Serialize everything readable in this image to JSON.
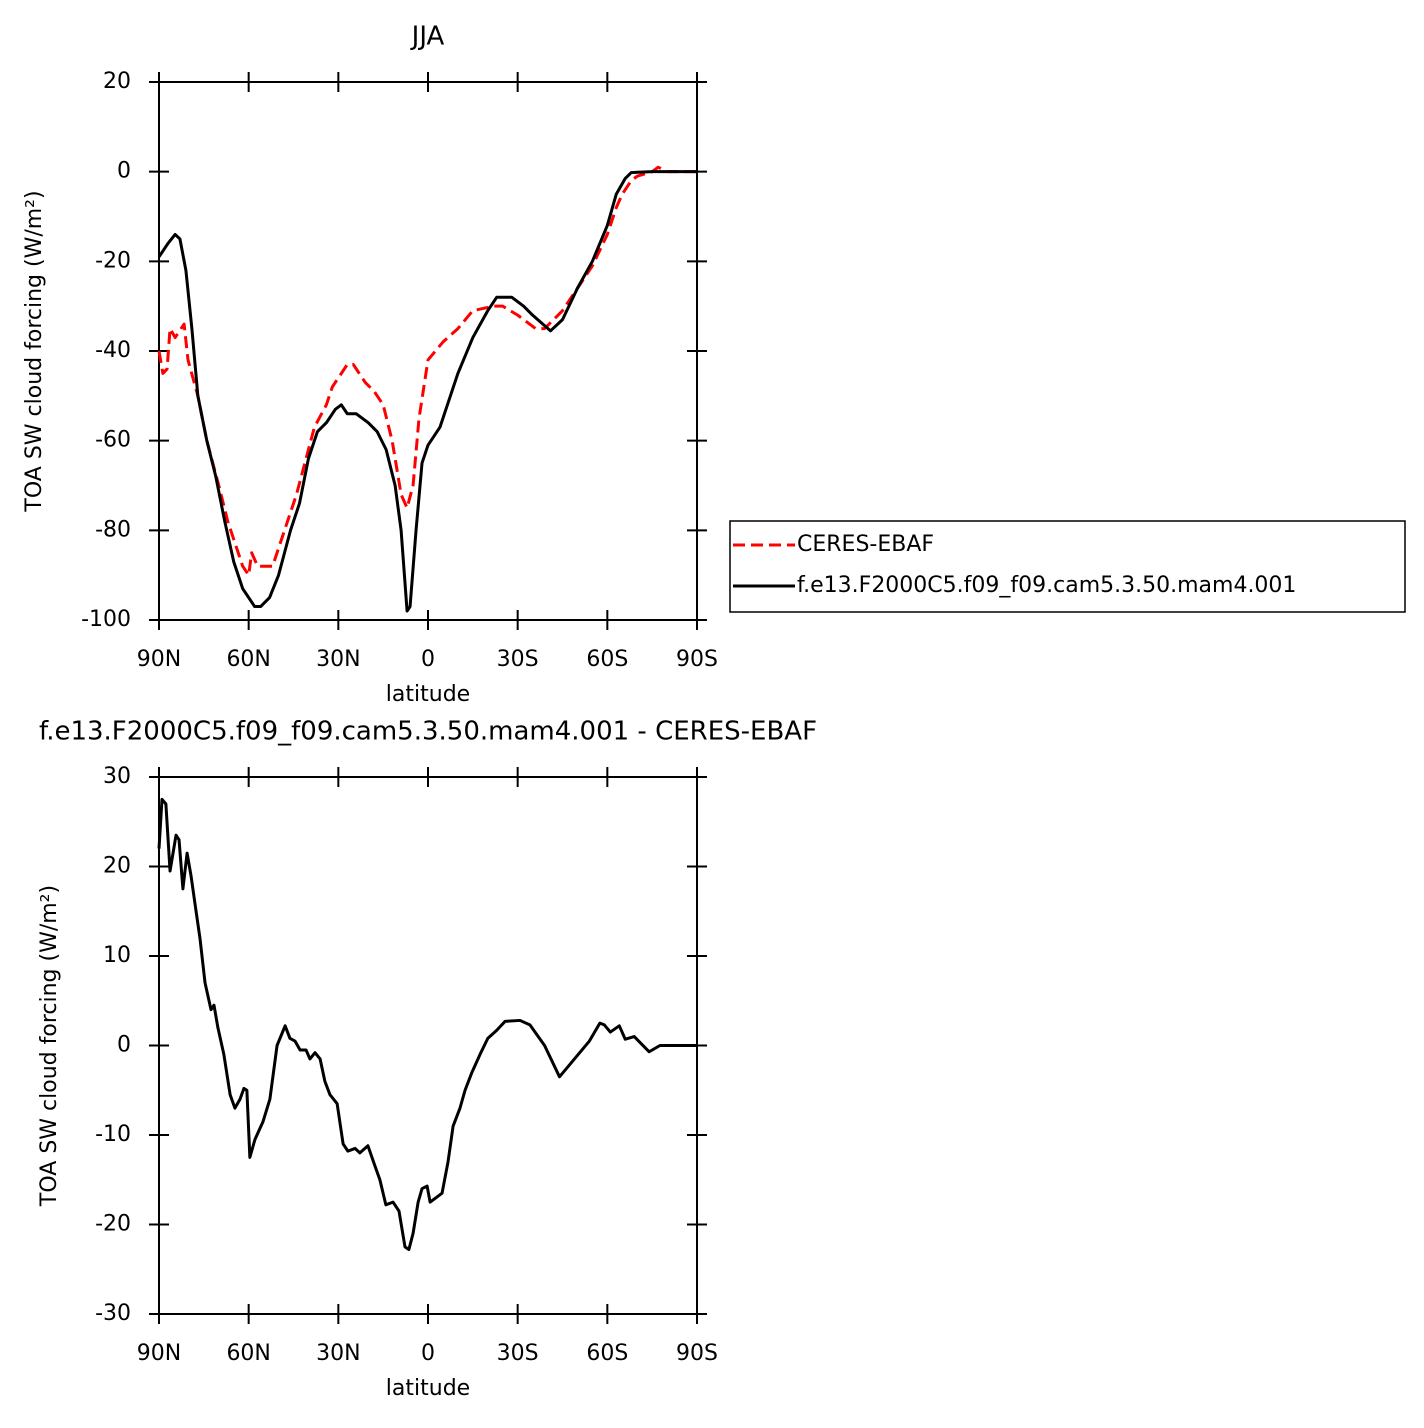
{
  "chart_data": [
    {
      "type": "line",
      "title": "JJA",
      "x_label": "latitude",
      "y_label": "TOA SW cloud forcing (W/m²)",
      "xlim": [
        90,
        -90
      ],
      "xticks": [
        {
          "value": 90,
          "label": "90N"
        },
        {
          "value": 60,
          "label": "60N"
        },
        {
          "value": 30,
          "label": "30N"
        },
        0,
        {
          "value": -30,
          "label": "30S"
        },
        {
          "value": -60,
          "label": "60S"
        },
        {
          "value": -90,
          "label": "90S"
        }
      ],
      "ylim": [
        -100,
        20
      ],
      "yticks": [
        -100,
        -80,
        -60,
        -40,
        -20,
        0,
        20
      ],
      "legend": "right",
      "series": [
        {
          "name": "CERES-EBAF",
          "color": "#ff0000",
          "dashed": true,
          "x": [
            90,
            88.7,
            87.3,
            86.3,
            84.6,
            81.6,
            80.3,
            77,
            74,
            70,
            67,
            64,
            62,
            60,
            59,
            57,
            52,
            48,
            44,
            40,
            38,
            34,
            32,
            30,
            27,
            25,
            21,
            18,
            15,
            12,
            9,
            7,
            5,
            3,
            0,
            -5,
            -10,
            -15,
            -22,
            -25,
            -30,
            -36,
            -39,
            -45,
            -50,
            -55,
            -60,
            -63,
            -65,
            -68,
            -70,
            -75,
            -77,
            -80,
            -90
          ],
          "values": [
            -40,
            -45,
            -44,
            -35,
            -37,
            -34,
            -42,
            -50,
            -60,
            -70,
            -78,
            -84,
            -88,
            -90,
            -85,
            -88,
            -88,
            -80,
            -72,
            -62,
            -57,
            -52,
            -48,
            -46,
            -43,
            -43,
            -47,
            -49,
            -52,
            -60,
            -72,
            -75,
            -70,
            -55,
            -42,
            -38,
            -35,
            -31,
            -30,
            -30,
            -32,
            -35,
            -35,
            -31,
            -26,
            -21,
            -14,
            -8,
            -5,
            -2,
            -1,
            0,
            1,
            0,
            0
          ]
        },
        {
          "name": "f.e13.F2000C5.f09_f09.cam5.3.50.mam4.001",
          "color": "#000000",
          "dashed": false,
          "x": [
            90,
            87,
            84.6,
            83,
            81,
            79,
            77,
            74,
            71,
            68,
            65,
            62,
            60,
            58,
            56,
            53,
            50,
            46,
            43,
            40,
            37,
            34,
            31,
            29,
            27,
            24,
            20,
            17,
            14,
            11,
            9,
            7,
            6,
            4,
            2,
            0,
            -4,
            -7,
            -10,
            -15,
            -20,
            -23,
            -28,
            -32,
            -35,
            -41,
            -45,
            -50,
            -55,
            -60,
            -63,
            -66,
            -68,
            -75,
            -90
          ],
          "values": [
            -19,
            -16,
            -14,
            -15,
            -22,
            -35,
            -50,
            -60,
            -68,
            -78,
            -87,
            -93,
            -95,
            -97,
            -97,
            -95,
            -90,
            -80,
            -74,
            -64,
            -58,
            -56,
            -53,
            -52,
            -54,
            -54,
            -56,
            -58,
            -62,
            -70,
            -80,
            -98,
            -97,
            -80,
            -65,
            -61,
            -57,
            -51,
            -45,
            -37,
            -31,
            -28,
            -28,
            -30,
            -32,
            -35.5,
            -33,
            -26,
            -20,
            -12,
            -5,
            -1.5,
            -0.2,
            0,
            0
          ]
        }
      ]
    },
    {
      "type": "line",
      "title": "f.e13.F2000C5.f09_f09.cam5.3.50.mam4.001 - CERES-EBAF",
      "x_label": "latitude",
      "y_label": "TOA SW cloud forcing (W/m²)",
      "xlim": [
        90,
        -90
      ],
      "xticks": [
        {
          "value": 90,
          "label": "90N"
        },
        {
          "value": 60,
          "label": "60N"
        },
        {
          "value": 30,
          "label": "30N"
        },
        0,
        {
          "value": -30,
          "label": "30S"
        },
        {
          "value": -60,
          "label": "60S"
        },
        {
          "value": -90,
          "label": "90S"
        }
      ],
      "ylim": [
        -30,
        30
      ],
      "yticks": [
        -30,
        -20,
        -10,
        0,
        10,
        20,
        30
      ],
      "series": [
        {
          "color": "#000000",
          "dashed": false,
          "x": [
            90,
            89,
            87.7,
            86.3,
            84.3,
            83.3,
            82,
            80.6,
            79.3,
            77.6,
            76.3,
            74.6,
            72.6,
            71.6,
            70.3,
            68.3,
            66.2,
            64.6,
            62.9,
            61.6,
            60.6,
            59.6,
            57.9,
            55.2,
            52.9,
            50.5,
            47.8,
            46.2,
            44.5,
            42.8,
            40.8,
            39.5,
            37.8,
            36.1,
            34.5,
            32.8,
            30.4,
            28.4,
            26.8,
            24.4,
            22.8,
            20.1,
            17.7,
            16.1,
            14.1,
            11.7,
            9.7,
            7.7,
            6.4,
            5,
            3.3,
            2,
            0.3,
            -0.7,
            -2.7,
            -4.7,
            -6.7,
            -8.4,
            -10.7,
            -12.4,
            -14.7,
            -17.4,
            -20,
            -23,
            -25.8,
            -30.8,
            -34.1,
            -39,
            -44,
            -49,
            -54,
            -57.5,
            -59,
            -61,
            -64,
            -66,
            -69,
            -74,
            -77.6,
            -81,
            -90
          ],
          "values": [
            22,
            27.5,
            27,
            19.5,
            23.5,
            23,
            17.5,
            21.5,
            19,
            15,
            12,
            7,
            4,
            4.5,
            2,
            -1,
            -5.5,
            -7,
            -6,
            -4.8,
            -5,
            -12.5,
            -10.5,
            -8.5,
            -6,
            0,
            2.2,
            0.8,
            0.5,
            -0.5,
            -0.5,
            -1.5,
            -0.8,
            -1.5,
            -4,
            -5.5,
            -6.5,
            -11,
            -11.8,
            -11.5,
            -12,
            -11.2,
            -13.5,
            -15,
            -17.8,
            -17.5,
            -18.5,
            -22.5,
            -22.8,
            -21,
            -17.5,
            -16,
            -15.7,
            -17.5,
            -17,
            -16.5,
            -13,
            -9,
            -7,
            -5,
            -3,
            -1,
            0.8,
            1.7,
            2.7,
            2.8,
            2.3,
            0,
            -3.5,
            -1.5,
            0.5,
            2.5,
            2.3,
            1.5,
            2.2,
            0.7,
            1,
            -0.7,
            0,
            0,
            0
          ]
        }
      ]
    }
  ]
}
